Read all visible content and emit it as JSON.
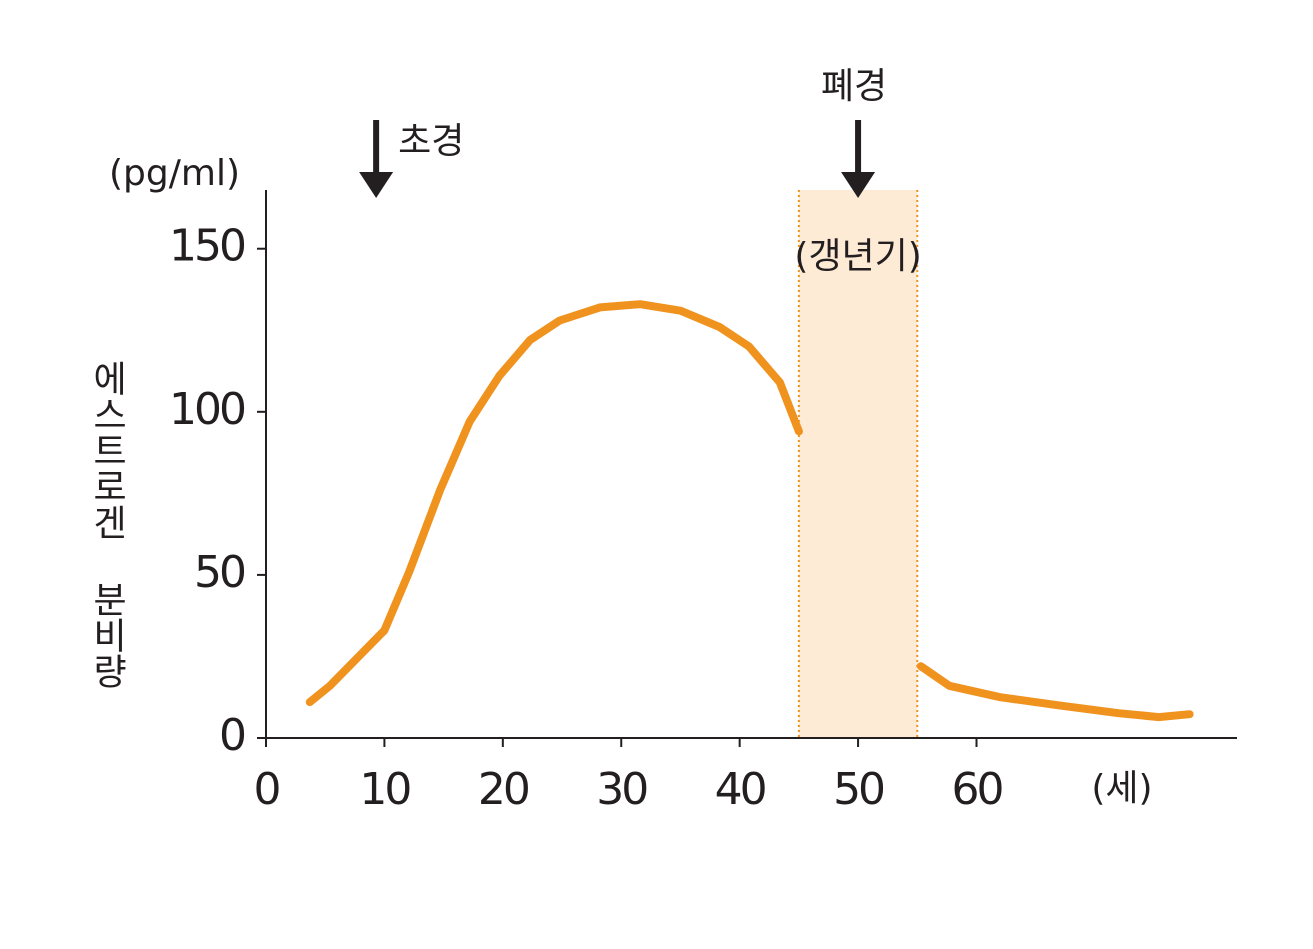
{
  "chart_data": {
    "type": "line",
    "y_unit": "(pg/ml)",
    "y_label": "에스트로겐 분비량",
    "x_unit": "(세)",
    "x": [
      3.7,
      5.4,
      10,
      12.1,
      14.7,
      17.2,
      19.7,
      22.3,
      24.8,
      28.2,
      31.6,
      35,
      38.3,
      40.8,
      43.4,
      45,
      null,
      55.3,
      57.7,
      62,
      67,
      72,
      75.4,
      78
    ],
    "series": [
      {
        "color": "#f0921e",
        "values": [
          11,
          16,
          33,
          51,
          76,
          97,
          111,
          122,
          128,
          132,
          133,
          131,
          126,
          120,
          109,
          94,
          null,
          22,
          16,
          12.5,
          10,
          7.6,
          6.4,
          7.3
        ]
      }
    ],
    "xlim": [
      0,
      82
    ],
    "ylim": [
      0,
      168
    ],
    "xticks": [
      0,
      10,
      20,
      30,
      40,
      50,
      60
    ],
    "yticks": [
      0,
      50,
      100,
      150
    ],
    "shaded_range": {
      "x": [
        45,
        55
      ],
      "label": "(갱년기)",
      "color": "#fdebd6"
    },
    "annotations": [
      {
        "text": "초경",
        "x": 9.3
      },
      {
        "text": "폐경",
        "x": 50
      }
    ]
  }
}
